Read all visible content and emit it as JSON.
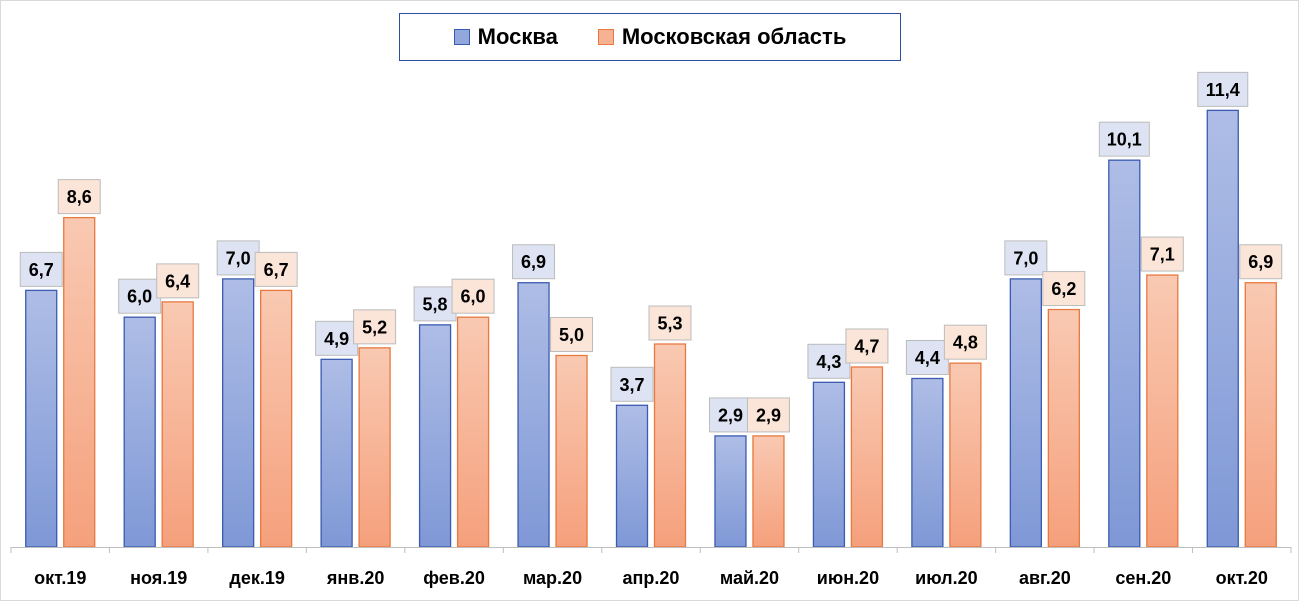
{
  "chart_data": {
    "type": "bar",
    "categories": [
      "окт.19",
      "ноя.19",
      "дек.19",
      "янв.20",
      "фев.20",
      "мар.20",
      "апр.20",
      "май.20",
      "июн.20",
      "июл.20",
      "авг.20",
      "сен.20",
      "окт.20"
    ],
    "series": [
      {
        "name": "Москва",
        "values": [
          6.7,
          6.0,
          7.0,
          4.9,
          5.8,
          6.9,
          3.7,
          2.9,
          4.3,
          4.4,
          7.0,
          10.1,
          11.4
        ],
        "labels": [
          "6,7",
          "6,0",
          "7,0",
          "4,9",
          "5,8",
          "6,9",
          "3,7",
          "2,9",
          "4,3",
          "4,4",
          "7,0",
          "10,1",
          "11,4"
        ],
        "color": "#92a8dd",
        "border": "#3a5bb0"
      },
      {
        "name": "Московская область",
        "values": [
          8.6,
          6.4,
          6.7,
          5.2,
          6.0,
          5.0,
          5.3,
          2.9,
          4.7,
          4.8,
          6.2,
          7.1,
          6.9
        ],
        "labels": [
          "8,6",
          "6,4",
          "6,7",
          "5,2",
          "6,0",
          "5,0",
          "5,3",
          "2,9",
          "4,7",
          "4,8",
          "6,2",
          "7,1",
          "6,9"
        ],
        "color": "#f7b294",
        "border": "#e8793f"
      }
    ],
    "title": "",
    "xlabel": "",
    "ylabel": "",
    "ylim": [
      0,
      12
    ],
    "grid": false,
    "legend": "top-center",
    "data_labels": true
  }
}
